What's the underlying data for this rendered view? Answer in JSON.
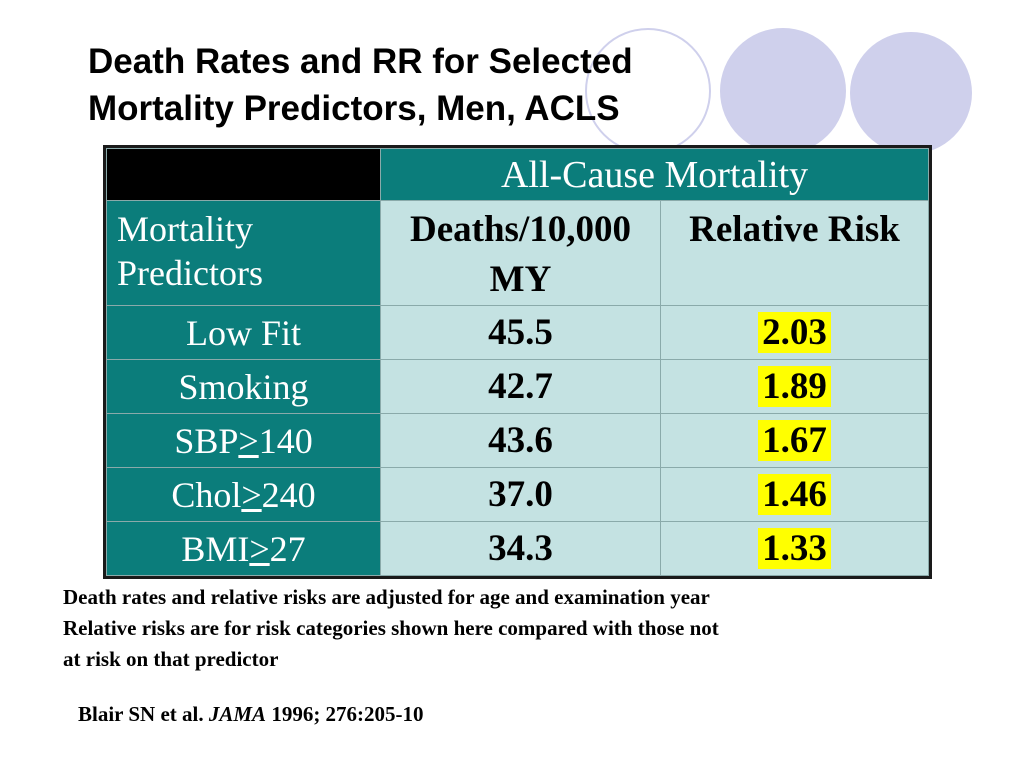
{
  "slide": {
    "title_lines": [
      "Death Rates and RR for Selected",
      "Mortality Predictors, Men, ACLS"
    ]
  },
  "table": {
    "group_header": "All-Cause Mortality",
    "row_header_label": [
      "Mortality",
      "Predictors"
    ],
    "col_deaths": [
      "Deaths/10,000",
      "MY"
    ],
    "col_rr": "Relative Risk",
    "rows": [
      {
        "pred_a": "Low Fit",
        "pred_op": "",
        "pred_b": "",
        "deaths": "45.5",
        "rr": "2.03"
      },
      {
        "pred_a": "Smoking",
        "pred_op": "",
        "pred_b": "",
        "deaths": "42.7",
        "rr": "1.89"
      },
      {
        "pred_a": "SBP",
        "pred_op": ">",
        "pred_b": "140",
        "deaths": "43.6",
        "rr": "1.67"
      },
      {
        "pred_a": "Chol",
        "pred_op": ">",
        "pred_b": "240",
        "deaths": "37.0",
        "rr": "1.46"
      },
      {
        "pred_a": "BMI",
        "pred_op": ">",
        "pred_b": "27",
        "deaths": "34.3",
        "rr": "1.33"
      }
    ]
  },
  "notes": [
    "Death rates and relative risks are adjusted for age and examination year",
    "Relative risks are for risk categories shown here compared with those not",
    "at risk on that predictor"
  ],
  "citation": {
    "prefix": "Blair SN et al. ",
    "journal": "JAMA",
    "suffix": " 1996; 276:205-10"
  },
  "colors": {
    "teal": "#0b7d7b",
    "light_teal": "#c4e2e2",
    "highlight": "#ffff00",
    "circle": "#cfd0ec"
  }
}
